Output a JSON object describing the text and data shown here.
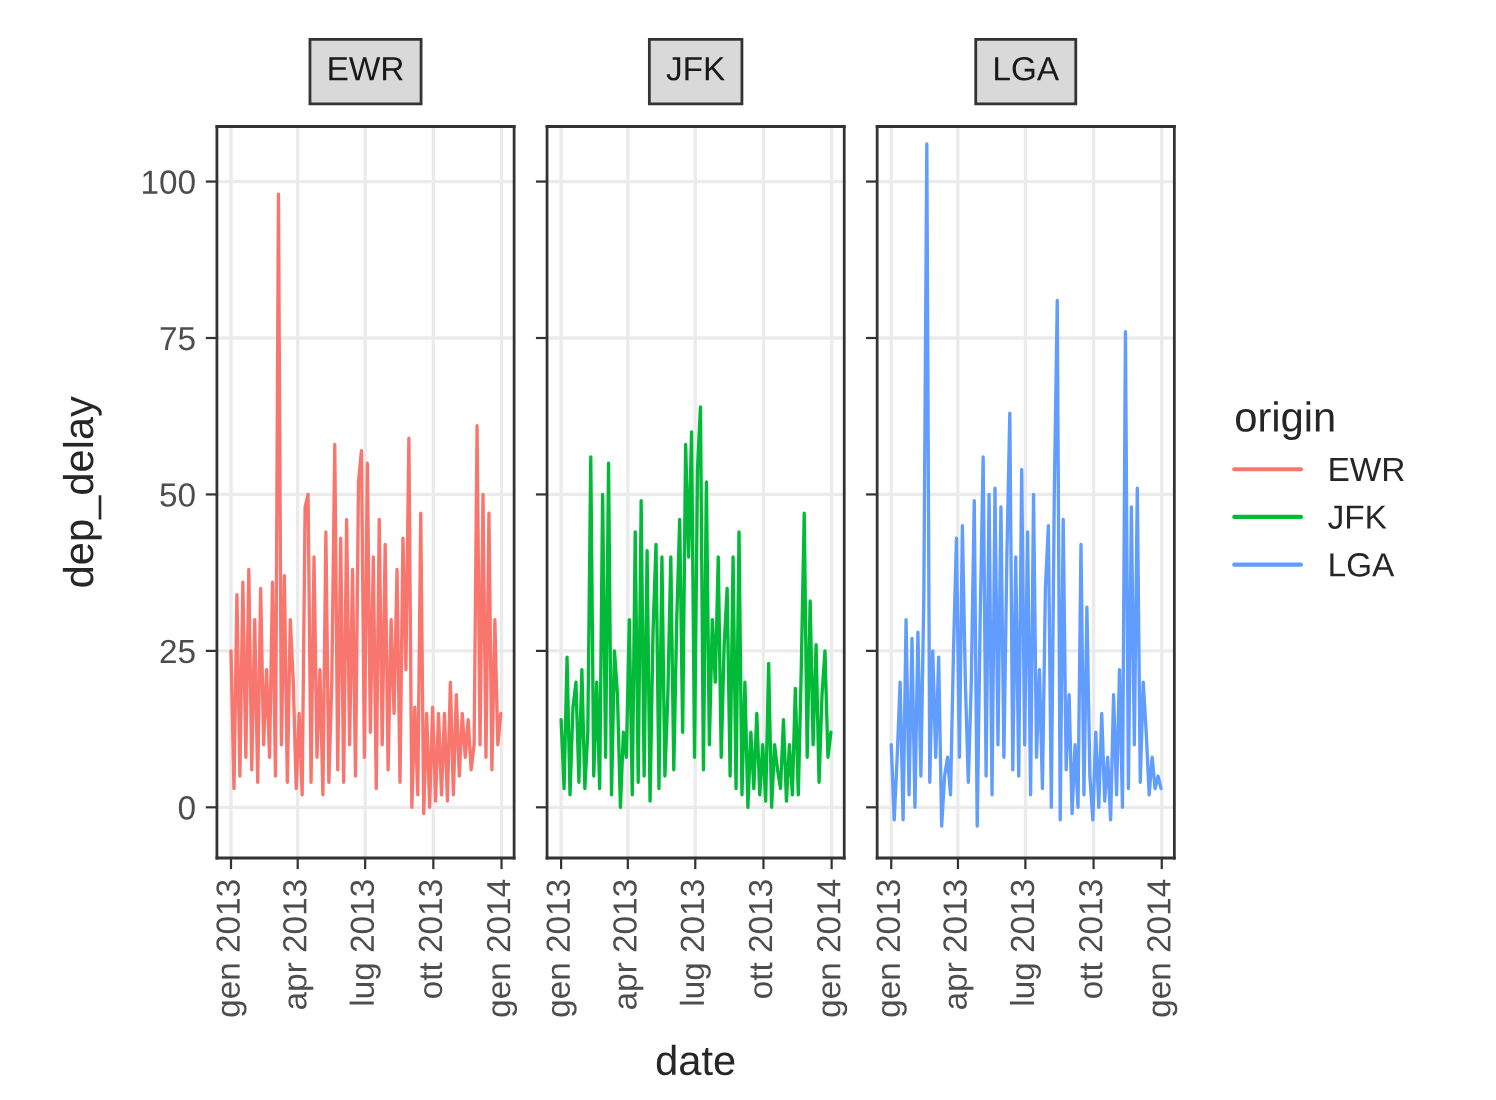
{
  "chart_data": [
    {
      "type": "line",
      "title": "EWR",
      "ylabel": "dep_delay",
      "grid": true,
      "tick_labels": true,
      "x": [
        "2013-01-01",
        "2013-01-05",
        "2013-01-09",
        "2013-01-13",
        "2013-01-17",
        "2013-01-21",
        "2013-01-25",
        "2013-01-29",
        "2013-02-02",
        "2013-02-06",
        "2013-02-10",
        "2013-02-14",
        "2013-02-18",
        "2013-02-22",
        "2013-02-26",
        "2013-03-02",
        "2013-03-06",
        "2013-03-10",
        "2013-03-14",
        "2013-03-18",
        "2013-03-22",
        "2013-03-26",
        "2013-03-30",
        "2013-04-03",
        "2013-04-07",
        "2013-04-11",
        "2013-04-15",
        "2013-04-19",
        "2013-04-23",
        "2013-04-27",
        "2013-05-01",
        "2013-05-05",
        "2013-05-09",
        "2013-05-13",
        "2013-05-17",
        "2013-05-21",
        "2013-05-25",
        "2013-05-29",
        "2013-06-02",
        "2013-06-06",
        "2013-06-10",
        "2013-06-14",
        "2013-06-18",
        "2013-06-22",
        "2013-06-26",
        "2013-06-30",
        "2013-07-04",
        "2013-07-08",
        "2013-07-12",
        "2013-07-16",
        "2013-07-20",
        "2013-07-24",
        "2013-07-28",
        "2013-08-01",
        "2013-08-05",
        "2013-08-09",
        "2013-08-13",
        "2013-08-17",
        "2013-08-21",
        "2013-08-25",
        "2013-08-29",
        "2013-09-02",
        "2013-09-06",
        "2013-09-10",
        "2013-09-14",
        "2013-09-18",
        "2013-09-22",
        "2013-09-26",
        "2013-09-30",
        "2013-10-04",
        "2013-10-08",
        "2013-10-12",
        "2013-10-16",
        "2013-10-20",
        "2013-10-24",
        "2013-10-28",
        "2013-11-01",
        "2013-11-05",
        "2013-11-09",
        "2013-11-13",
        "2013-11-17",
        "2013-11-21",
        "2013-11-25",
        "2013-11-29",
        "2013-12-03",
        "2013-12-07",
        "2013-12-11",
        "2013-12-15",
        "2013-12-19",
        "2013-12-23",
        "2013-12-27",
        "2013-12-31"
      ],
      "xlim": [
        "2012-12-13",
        "2014-01-18"
      ],
      "xticks": [
        {
          "value": "2013-01-01",
          "label": "gen 2013"
        },
        {
          "value": "2013-04-01",
          "label": "apr 2013"
        },
        {
          "value": "2013-07-01",
          "label": "lug 2013"
        },
        {
          "value": "2013-10-01",
          "label": "ott 2013"
        },
        {
          "value": "2014-01-01",
          "label": "gen 2014"
        }
      ],
      "ylim": [
        -8.1,
        108.8
      ],
      "yticks": [
        0,
        25,
        50,
        75,
        100
      ],
      "series": [
        {
          "name": "EWR",
          "color": "#f8766d",
          "values": [
            25,
            3,
            34,
            5,
            36,
            8,
            38,
            6,
            30,
            4,
            35,
            10,
            22,
            8,
            36,
            5,
            98,
            10,
            37,
            4,
            30,
            20,
            3,
            15,
            2,
            48,
            50,
            4,
            40,
            8,
            22,
            2,
            44,
            4,
            20,
            58,
            6,
            43,
            4,
            46,
            10,
            38,
            5,
            52,
            57,
            8,
            55,
            12,
            40,
            3,
            46,
            10,
            42,
            6,
            30,
            15,
            38,
            4,
            43,
            22,
            59,
            0,
            16,
            2,
            47,
            -1,
            15,
            0,
            16,
            1,
            15,
            2,
            15,
            1,
            20,
            2,
            18,
            5,
            15,
            8,
            14,
            6,
            10,
            61,
            10,
            50,
            8,
            47,
            6,
            30,
            10,
            15
          ]
        }
      ]
    },
    {
      "type": "line",
      "title": "JFK",
      "grid": true,
      "tick_labels": "x",
      "x": [
        "2013-01-01",
        "2013-01-05",
        "2013-01-09",
        "2013-01-13",
        "2013-01-17",
        "2013-01-21",
        "2013-01-25",
        "2013-01-29",
        "2013-02-02",
        "2013-02-06",
        "2013-02-10",
        "2013-02-14",
        "2013-02-18",
        "2013-02-22",
        "2013-02-26",
        "2013-03-02",
        "2013-03-06",
        "2013-03-10",
        "2013-03-14",
        "2013-03-18",
        "2013-03-22",
        "2013-03-26",
        "2013-03-30",
        "2013-04-03",
        "2013-04-07",
        "2013-04-11",
        "2013-04-15",
        "2013-04-19",
        "2013-04-23",
        "2013-04-27",
        "2013-05-01",
        "2013-05-05",
        "2013-05-09",
        "2013-05-13",
        "2013-05-17",
        "2013-05-21",
        "2013-05-25",
        "2013-05-29",
        "2013-06-02",
        "2013-06-06",
        "2013-06-10",
        "2013-06-14",
        "2013-06-18",
        "2013-06-22",
        "2013-06-26",
        "2013-06-30",
        "2013-07-04",
        "2013-07-08",
        "2013-07-12",
        "2013-07-16",
        "2013-07-20",
        "2013-07-24",
        "2013-07-28",
        "2013-08-01",
        "2013-08-05",
        "2013-08-09",
        "2013-08-13",
        "2013-08-17",
        "2013-08-21",
        "2013-08-25",
        "2013-08-29",
        "2013-09-02",
        "2013-09-06",
        "2013-09-10",
        "2013-09-14",
        "2013-09-18",
        "2013-09-22",
        "2013-09-26",
        "2013-09-30",
        "2013-10-04",
        "2013-10-08",
        "2013-10-12",
        "2013-10-16",
        "2013-10-20",
        "2013-10-24",
        "2013-10-28",
        "2013-11-01",
        "2013-11-05",
        "2013-11-09",
        "2013-11-13",
        "2013-11-17",
        "2013-11-21",
        "2013-11-25",
        "2013-11-29",
        "2013-12-03",
        "2013-12-07",
        "2013-12-11",
        "2013-12-15",
        "2013-12-19",
        "2013-12-23",
        "2013-12-27",
        "2013-12-31"
      ],
      "xlim": [
        "2012-12-13",
        "2014-01-18"
      ],
      "xlabel": "date",
      "xticks": [
        {
          "value": "2013-01-01",
          "label": "gen 2013"
        },
        {
          "value": "2013-04-01",
          "label": "apr 2013"
        },
        {
          "value": "2013-07-01",
          "label": "lug 2013"
        },
        {
          "value": "2013-10-01",
          "label": "ott 2013"
        },
        {
          "value": "2014-01-01",
          "label": "gen 2014"
        }
      ],
      "ylim": [
        -8.1,
        108.8
      ],
      "yticks": [
        0,
        25,
        50,
        75,
        100
      ],
      "series": [
        {
          "name": "JFK",
          "color": "#00ba38",
          "values": [
            14,
            3,
            24,
            2,
            16,
            20,
            4,
            22,
            3,
            12,
            56,
            5,
            20,
            3,
            50,
            8,
            55,
            2,
            25,
            18,
            0,
            12,
            8,
            30,
            2,
            44,
            4,
            49,
            5,
            41,
            1,
            28,
            42,
            3,
            40,
            5,
            18,
            40,
            6,
            30,
            46,
            12,
            58,
            40,
            60,
            8,
            54,
            64,
            6,
            52,
            10,
            30,
            20,
            40,
            8,
            26,
            35,
            5,
            40,
            3,
            44,
            2,
            20,
            0,
            12,
            3,
            15,
            2,
            10,
            1,
            23,
            0,
            10,
            6,
            3,
            14,
            1,
            10,
            2,
            19,
            2,
            22,
            47,
            8,
            33,
            10,
            26,
            4,
            18,
            25,
            8,
            12
          ]
        }
      ]
    },
    {
      "type": "line",
      "title": "LGA",
      "grid": true,
      "tick_labels": "x",
      "legend": "right",
      "legend_title": "origin",
      "x": [
        "2013-01-01",
        "2013-01-05",
        "2013-01-09",
        "2013-01-13",
        "2013-01-17",
        "2013-01-21",
        "2013-01-25",
        "2013-01-29",
        "2013-02-02",
        "2013-02-06",
        "2013-02-10",
        "2013-02-14",
        "2013-02-18",
        "2013-02-22",
        "2013-02-26",
        "2013-03-02",
        "2013-03-06",
        "2013-03-10",
        "2013-03-14",
        "2013-03-18",
        "2013-03-22",
        "2013-03-26",
        "2013-03-30",
        "2013-04-03",
        "2013-04-07",
        "2013-04-11",
        "2013-04-15",
        "2013-04-19",
        "2013-04-23",
        "2013-04-27",
        "2013-05-01",
        "2013-05-05",
        "2013-05-09",
        "2013-05-13",
        "2013-05-17",
        "2013-05-21",
        "2013-05-25",
        "2013-05-29",
        "2013-06-02",
        "2013-06-06",
        "2013-06-10",
        "2013-06-14",
        "2013-06-18",
        "2013-06-22",
        "2013-06-26",
        "2013-06-30",
        "2013-07-04",
        "2013-07-08",
        "2013-07-12",
        "2013-07-16",
        "2013-07-20",
        "2013-07-24",
        "2013-07-28",
        "2013-08-01",
        "2013-08-05",
        "2013-08-09",
        "2013-08-13",
        "2013-08-17",
        "2013-08-21",
        "2013-08-25",
        "2013-08-29",
        "2013-09-02",
        "2013-09-06",
        "2013-09-10",
        "2013-09-14",
        "2013-09-18",
        "2013-09-22",
        "2013-09-26",
        "2013-09-30",
        "2013-10-04",
        "2013-10-08",
        "2013-10-12",
        "2013-10-16",
        "2013-10-20",
        "2013-10-24",
        "2013-10-28",
        "2013-11-01",
        "2013-11-05",
        "2013-11-09",
        "2013-11-13",
        "2013-11-17",
        "2013-11-21",
        "2013-11-25",
        "2013-11-29",
        "2013-12-03",
        "2013-12-07",
        "2013-12-11",
        "2013-12-15",
        "2013-12-19",
        "2013-12-23",
        "2013-12-27",
        "2013-12-31"
      ],
      "xlim": [
        "2012-12-13",
        "2014-01-18"
      ],
      "xticks": [
        {
          "value": "2013-01-01",
          "label": "gen 2013"
        },
        {
          "value": "2013-04-01",
          "label": "apr 2013"
        },
        {
          "value": "2013-07-01",
          "label": "lug 2013"
        },
        {
          "value": "2013-10-01",
          "label": "ott 2013"
        },
        {
          "value": "2014-01-01",
          "label": "gen 2014"
        }
      ],
      "ylim": [
        -8.1,
        108.8
      ],
      "yticks": [
        0,
        25,
        50,
        75,
        100
      ],
      "series": [
        {
          "name": "LGA",
          "color": "#619cff",
          "values": [
            10,
            -2,
            8,
            20,
            -2,
            30,
            2,
            27,
            0,
            28,
            5,
            34,
            106,
            4,
            25,
            8,
            24,
            -3,
            5,
            8,
            2,
            25,
            43,
            8,
            45,
            20,
            4,
            20,
            49,
            -3,
            30,
            56,
            5,
            50,
            2,
            51,
            10,
            48,
            8,
            40,
            63,
            6,
            40,
            5,
            54,
            10,
            44,
            2,
            50,
            8,
            22,
            3,
            35,
            45,
            0,
            50,
            81,
            -2,
            46,
            6,
            18,
            -1,
            10,
            0,
            42,
            2,
            32,
            5,
            -2,
            12,
            0,
            15,
            1,
            8,
            -2,
            18,
            2,
            22,
            0,
            76,
            3,
            48,
            10,
            51,
            4,
            20,
            12,
            2,
            8,
            3,
            5,
            3
          ]
        }
      ]
    }
  ]
}
